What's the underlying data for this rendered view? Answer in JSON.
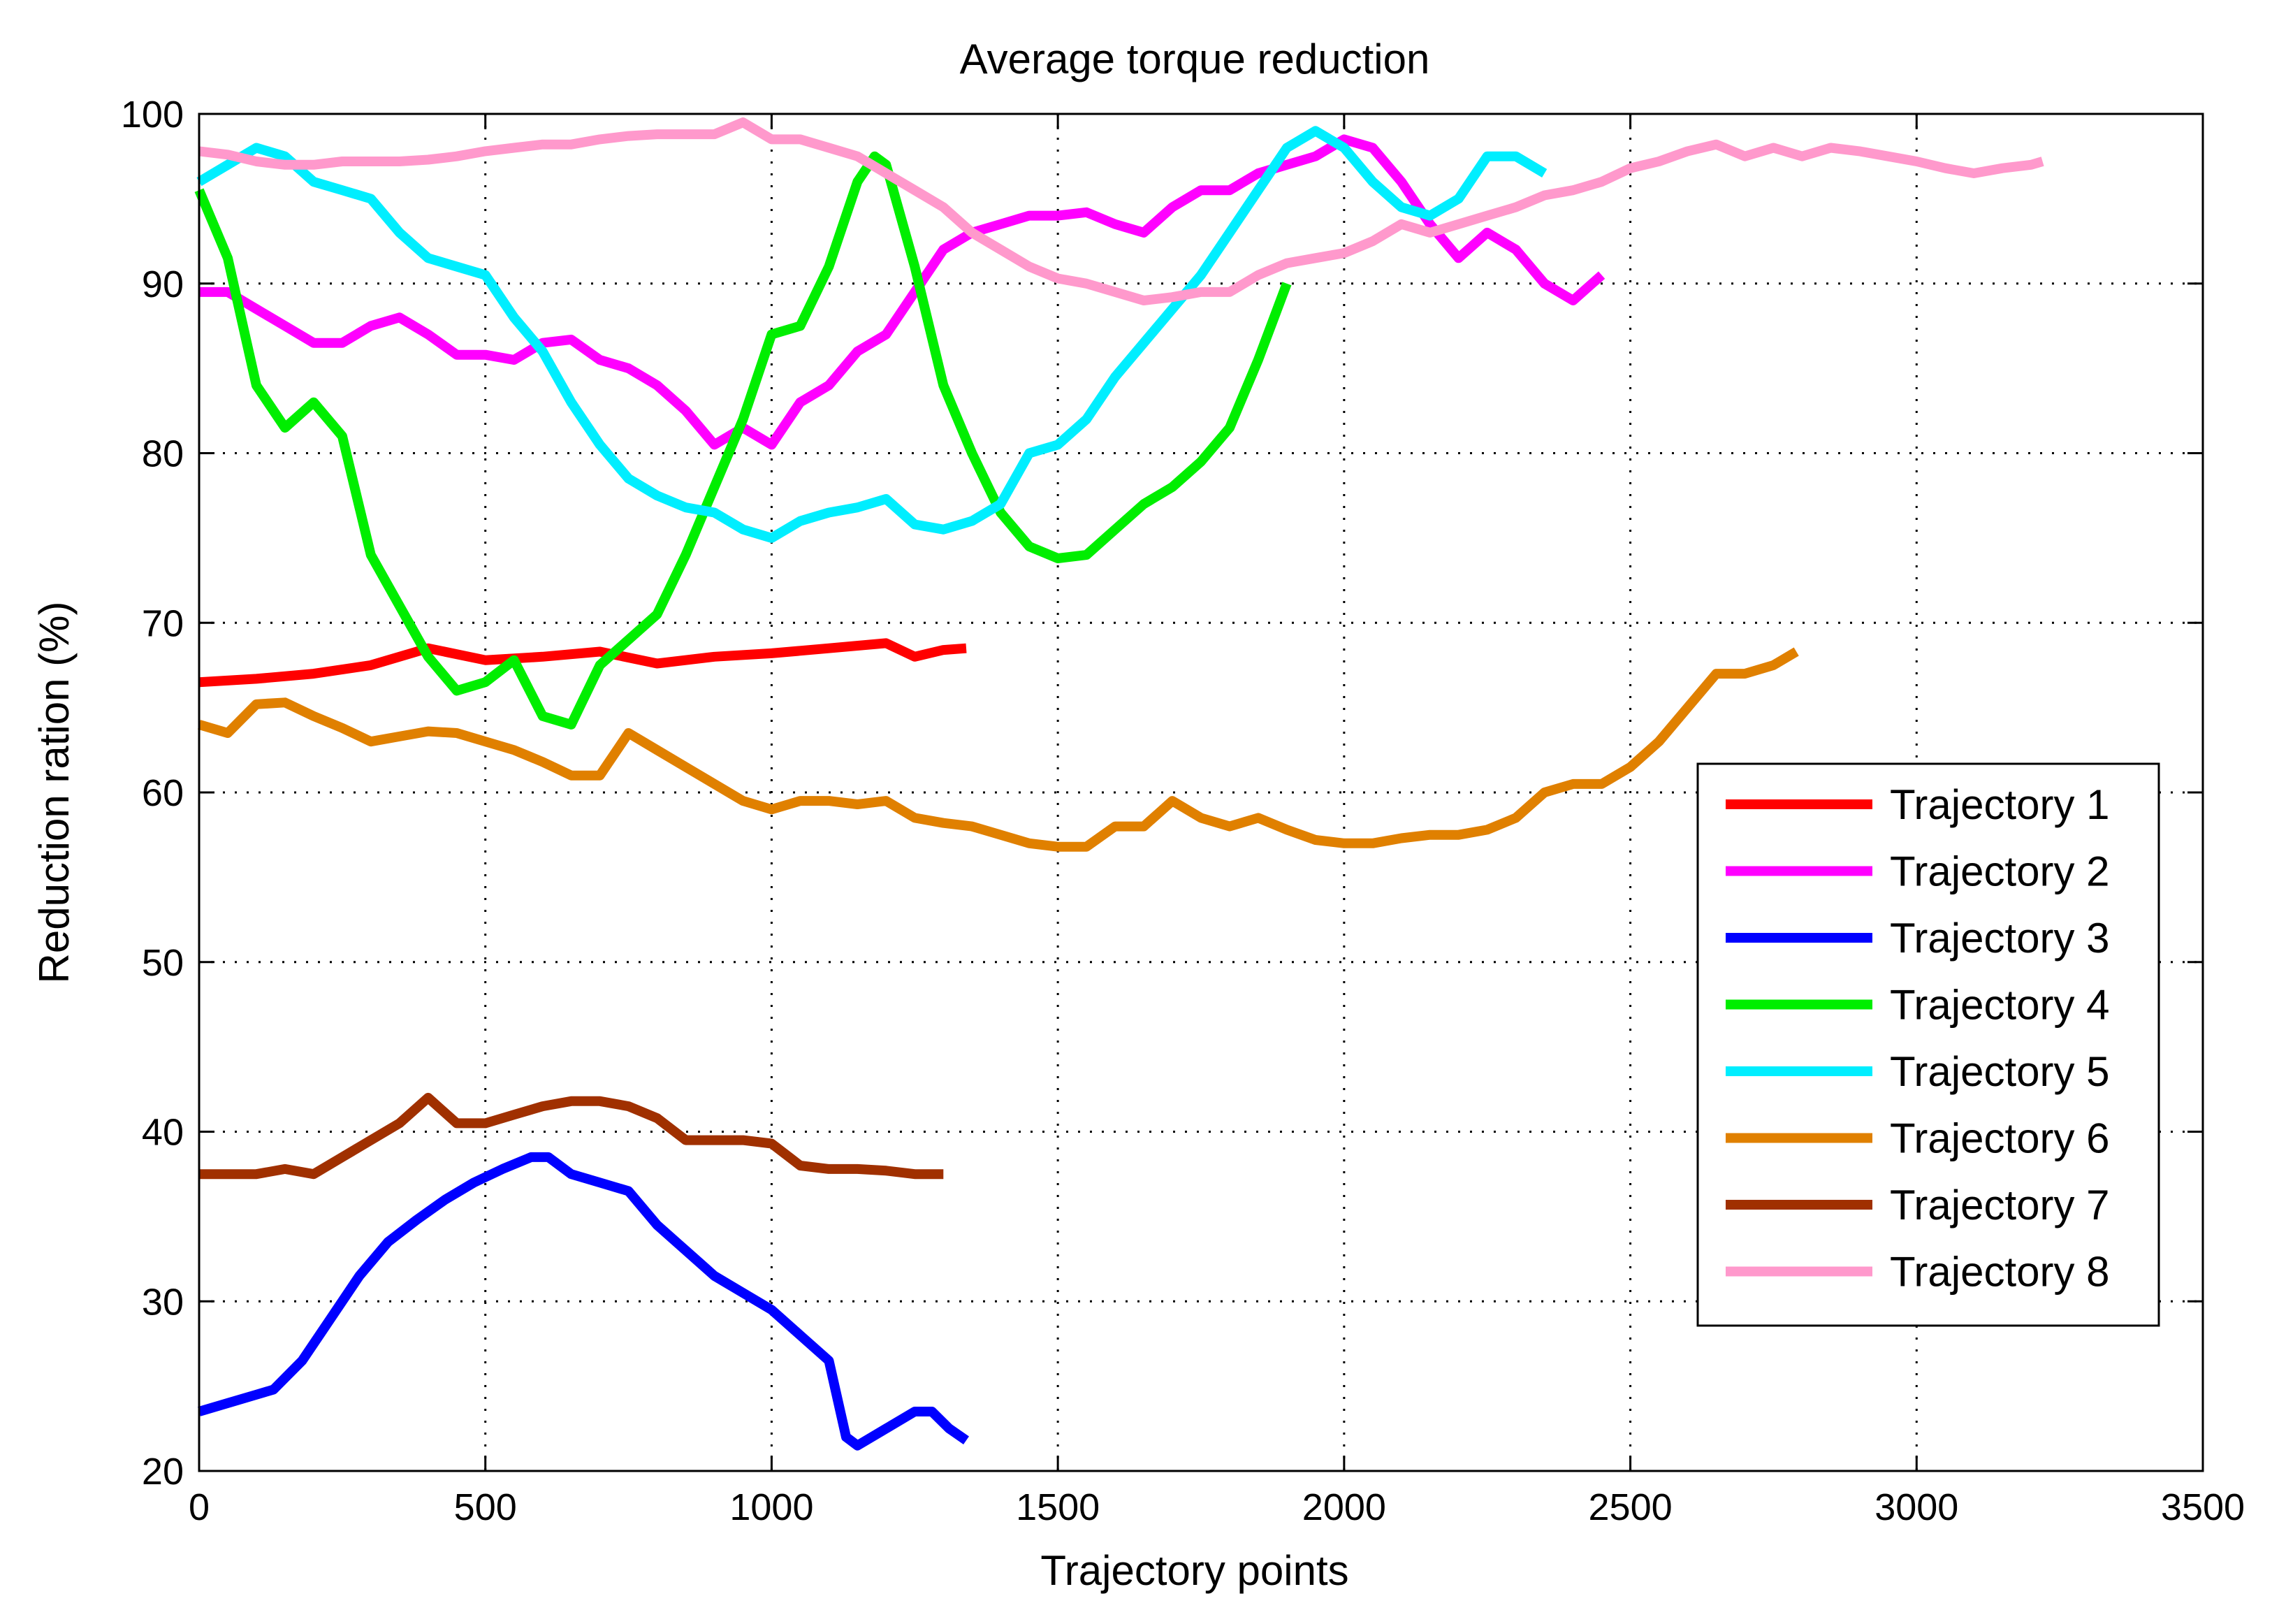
{
  "chart_data": {
    "type": "line",
    "title": "Average torque reduction",
    "xlabel": "Trajectory points",
    "ylabel": "Reduction ration (%)",
    "xlim": [
      0,
      3500
    ],
    "ylim": [
      20,
      100
    ],
    "xticks": [
      0,
      500,
      1000,
      1500,
      2000,
      2500,
      3000,
      3500
    ],
    "yticks": [
      20,
      30,
      40,
      50,
      60,
      70,
      80,
      90,
      100
    ],
    "xtick_labels": [
      "0",
      "500",
      "1000",
      "1500",
      "2000",
      "2500",
      "3000",
      "3500"
    ],
    "ytick_labels": [
      "20",
      "30",
      "40",
      "50",
      "60",
      "70",
      "80",
      "90",
      "100"
    ],
    "grid": true,
    "legend_position": "lower-right",
    "series": [
      {
        "name": "Trajectory 1",
        "color": "#ff0000",
        "x": [
          0,
          100,
          200,
          300,
          400,
          500,
          600,
          700,
          800,
          900,
          1000,
          1100,
          1200,
          1250,
          1300,
          1340
        ],
        "y": [
          66.5,
          66.7,
          67.0,
          67.5,
          68.5,
          67.8,
          68.0,
          68.3,
          67.6,
          68.0,
          68.2,
          68.5,
          68.8,
          68.0,
          68.4,
          68.5
        ]
      },
      {
        "name": "Trajectory 2",
        "color": "#ff00ff",
        "x": [
          0,
          50,
          100,
          150,
          200,
          250,
          300,
          350,
          400,
          450,
          500,
          550,
          600,
          650,
          700,
          750,
          800,
          850,
          900,
          950,
          1000,
          1050,
          1100,
          1150,
          1200,
          1250,
          1300,
          1350,
          1400,
          1450,
          1500,
          1550,
          1600,
          1650,
          1700,
          1750,
          1800,
          1850,
          1900,
          1950,
          2000,
          2050,
          2100,
          2150,
          2200,
          2250,
          2300,
          2350,
          2400,
          2450
        ],
        "y": [
          89.5,
          89.5,
          88.5,
          87.5,
          86.5,
          86.5,
          87.5,
          88.0,
          87.0,
          85.8,
          85.8,
          85.5,
          86.5,
          86.7,
          85.5,
          85.0,
          84.0,
          82.5,
          80.5,
          81.5,
          80.5,
          83.0,
          84.0,
          86.0,
          87.0,
          89.5,
          92.0,
          93.0,
          93.5,
          94.0,
          94.0,
          94.2,
          93.5,
          93.0,
          94.5,
          95.5,
          95.5,
          96.5,
          97.0,
          97.5,
          98.5,
          98.0,
          96.0,
          93.5,
          91.5,
          93.0,
          92.0,
          90.0,
          89.0,
          90.5
        ]
      },
      {
        "name": "Trajectory 3",
        "color": "#0000ff",
        "x": [
          0,
          50,
          100,
          130,
          180,
          230,
          280,
          330,
          380,
          430,
          480,
          530,
          580,
          610,
          650,
          700,
          750,
          800,
          850,
          900,
          950,
          1000,
          1050,
          1100,
          1130,
          1150,
          1200,
          1250,
          1280,
          1310,
          1340
        ],
        "y": [
          23.5,
          24.0,
          24.5,
          24.8,
          26.5,
          29.0,
          31.5,
          33.5,
          34.8,
          36.0,
          37.0,
          37.8,
          38.5,
          38.5,
          37.5,
          37.0,
          36.5,
          34.5,
          33.0,
          31.5,
          30.5,
          29.5,
          28.0,
          26.5,
          22.0,
          21.5,
          22.5,
          23.5,
          23.5,
          22.5,
          21.8
        ]
      },
      {
        "name": "Trajectory 4",
        "color": "#00ee00",
        "x": [
          0,
          50,
          100,
          150,
          200,
          250,
          300,
          350,
          400,
          450,
          500,
          550,
          600,
          650,
          700,
          750,
          800,
          850,
          900,
          950,
          1000,
          1050,
          1100,
          1150,
          1180,
          1200,
          1250,
          1300,
          1350,
          1400,
          1450,
          1500,
          1550,
          1600,
          1650,
          1700,
          1750,
          1800,
          1850,
          1900
        ],
        "y": [
          95.5,
          91.5,
          84.0,
          81.5,
          83.0,
          81.0,
          74.0,
          71.0,
          68.0,
          66.0,
          66.5,
          67.8,
          64.5,
          64.0,
          67.5,
          69.0,
          70.5,
          74.0,
          78.0,
          82.0,
          87.0,
          87.5,
          91.0,
          96.0,
          97.5,
          97.0,
          91.0,
          84.0,
          80.0,
          76.5,
          74.5,
          73.8,
          74.0,
          75.5,
          77.0,
          78.0,
          79.5,
          81.5,
          85.5,
          90.0
        ]
      },
      {
        "name": "Trajectory 5",
        "color": "#00eeff",
        "x": [
          0,
          50,
          100,
          150,
          200,
          250,
          300,
          350,
          400,
          450,
          500,
          550,
          600,
          650,
          700,
          750,
          800,
          850,
          900,
          950,
          1000,
          1050,
          1100,
          1150,
          1200,
          1250,
          1300,
          1350,
          1400,
          1450,
          1500,
          1550,
          1600,
          1650,
          1700,
          1750,
          1800,
          1850,
          1900,
          1950,
          2000,
          2050,
          2100,
          2150,
          2200,
          2250,
          2300,
          2350
        ],
        "y": [
          96.0,
          97.0,
          98.0,
          97.5,
          96.0,
          95.5,
          95.0,
          93.0,
          91.5,
          91.0,
          90.5,
          88.0,
          86.0,
          83.0,
          80.5,
          78.5,
          77.5,
          76.8,
          76.5,
          75.5,
          75.0,
          76.0,
          76.5,
          76.8,
          77.3,
          75.8,
          75.5,
          76.0,
          77.0,
          80.0,
          80.5,
          82.0,
          84.5,
          86.5,
          88.5,
          90.5,
          93.0,
          95.5,
          98.0,
          99.0,
          98.0,
          96.0,
          94.5,
          94.0,
          95.0,
          97.5,
          97.5,
          96.5
        ]
      },
      {
        "name": "Trajectory 6",
        "color": "#e08000",
        "x": [
          0,
          50,
          100,
          150,
          200,
          250,
          300,
          350,
          400,
          450,
          500,
          550,
          600,
          650,
          700,
          750,
          800,
          850,
          900,
          950,
          1000,
          1050,
          1100,
          1150,
          1200,
          1250,
          1300,
          1350,
          1400,
          1450,
          1500,
          1550,
          1600,
          1650,
          1700,
          1750,
          1800,
          1850,
          1900,
          1950,
          2000,
          2050,
          2100,
          2150,
          2200,
          2250,
          2300,
          2350,
          2400,
          2450,
          2500,
          2550,
          2600,
          2650,
          2700,
          2750,
          2790
        ],
        "y": [
          64.0,
          63.5,
          65.2,
          65.3,
          64.5,
          63.8,
          63.0,
          63.3,
          63.6,
          63.5,
          63.0,
          62.5,
          61.8,
          61.0,
          61.0,
          63.5,
          62.5,
          61.5,
          60.5,
          59.5,
          59.0,
          59.5,
          59.5,
          59.3,
          59.5,
          58.5,
          58.2,
          58.0,
          57.5,
          57.0,
          56.8,
          56.8,
          58.0,
          58.0,
          59.5,
          58.5,
          58.0,
          58.5,
          57.8,
          57.2,
          57.0,
          57.0,
          57.3,
          57.5,
          57.5,
          57.8,
          58.5,
          60.0,
          60.5,
          60.5,
          61.5,
          63.0,
          65.0,
          67.0,
          67.0,
          67.5,
          68.3
        ]
      },
      {
        "name": "Trajectory 7",
        "color": "#a03000",
        "x": [
          0,
          50,
          100,
          150,
          200,
          250,
          300,
          350,
          400,
          450,
          500,
          550,
          600,
          650,
          700,
          750,
          800,
          850,
          900,
          950,
          1000,
          1050,
          1100,
          1150,
          1200,
          1250,
          1300
        ],
        "y": [
          37.5,
          37.5,
          37.5,
          37.8,
          37.5,
          38.5,
          39.5,
          40.5,
          42.0,
          40.5,
          40.5,
          41.0,
          41.5,
          41.8,
          41.8,
          41.5,
          40.8,
          39.5,
          39.5,
          39.5,
          39.3,
          38.0,
          37.8,
          37.8,
          37.7,
          37.5,
          37.5
        ]
      },
      {
        "name": "Trajectory 8",
        "color": "#ff99cc",
        "x": [
          0,
          50,
          100,
          150,
          200,
          250,
          300,
          350,
          400,
          450,
          500,
          550,
          600,
          650,
          700,
          750,
          800,
          850,
          900,
          950,
          1000,
          1050,
          1100,
          1150,
          1200,
          1250,
          1300,
          1350,
          1400,
          1450,
          1500,
          1550,
          1600,
          1650,
          1700,
          1750,
          1800,
          1850,
          1900,
          1950,
          2000,
          2050,
          2100,
          2150,
          2200,
          2250,
          2300,
          2350,
          2400,
          2450,
          2500,
          2550,
          2600,
          2650,
          2700,
          2750,
          2800,
          2850,
          2900,
          2950,
          3000,
          3050,
          3100,
          3150,
          3200,
          3220
        ],
        "y": [
          97.8,
          97.6,
          97.2,
          97.0,
          97.0,
          97.2,
          97.2,
          97.2,
          97.3,
          97.5,
          97.8,
          98.0,
          98.2,
          98.2,
          98.5,
          98.7,
          98.8,
          98.8,
          98.8,
          99.5,
          98.5,
          98.5,
          98.0,
          97.5,
          96.5,
          95.5,
          94.5,
          93.0,
          92.0,
          91.0,
          90.3,
          90.0,
          89.5,
          89.0,
          89.2,
          89.5,
          89.5,
          90.5,
          91.2,
          91.5,
          91.8,
          92.5,
          93.5,
          93.0,
          93.5,
          94.0,
          94.5,
          95.2,
          95.5,
          96.0,
          96.8,
          97.2,
          97.8,
          98.2,
          97.5,
          98.0,
          97.5,
          98.0,
          97.8,
          97.5,
          97.2,
          96.8,
          96.5,
          96.8,
          97.0,
          97.2
        ]
      }
    ]
  }
}
